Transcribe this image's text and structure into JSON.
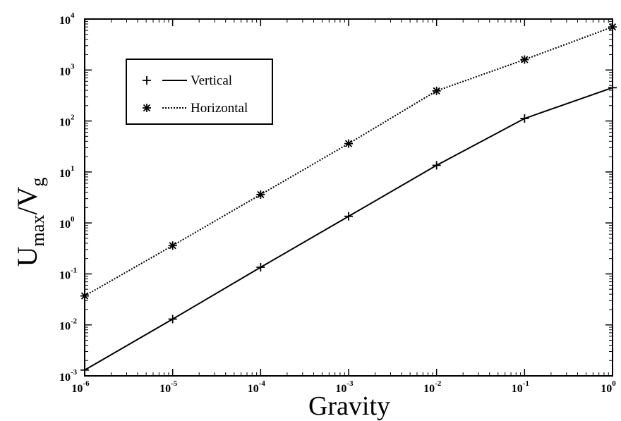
{
  "chart_data": {
    "type": "line",
    "title": "",
    "xlabel": "Gravity",
    "ylabel": {
      "main": "U",
      "sub1": "max",
      "mid": "/V",
      "sub2": "g"
    },
    "x_scale": "log",
    "y_scale": "log",
    "xlim": [
      1e-06,
      1
    ],
    "ylim": [
      0.001,
      10000.0
    ],
    "grid": false,
    "legend_position": "top-left",
    "x_ticks": [
      {
        "value": 1e-06,
        "base": "10",
        "exp": "-6"
      },
      {
        "value": 1e-05,
        "base": "10",
        "exp": "-5"
      },
      {
        "value": 0.0001,
        "base": "10",
        "exp": "-4"
      },
      {
        "value": 0.001,
        "base": "10",
        "exp": "-3"
      },
      {
        "value": 0.01,
        "base": "10",
        "exp": "-2"
      },
      {
        "value": 0.1,
        "base": "10",
        "exp": "-1"
      },
      {
        "value": 1,
        "base": "10",
        "exp": "0"
      }
    ],
    "y_ticks": [
      {
        "value": 0.001,
        "base": "10",
        "exp": "-3"
      },
      {
        "value": 0.01,
        "base": "10",
        "exp": "-2"
      },
      {
        "value": 0.1,
        "base": "10",
        "exp": "-1"
      },
      {
        "value": 1,
        "base": "10",
        "exp": "0"
      },
      {
        "value": 10,
        "base": "10",
        "exp": "1"
      },
      {
        "value": 100,
        "base": "10",
        "exp": "2"
      },
      {
        "value": 1000,
        "base": "10",
        "exp": "3"
      },
      {
        "value": 10000,
        "base": "10",
        "exp": "4"
      }
    ],
    "series": [
      {
        "name": "Vertical",
        "marker": "plus",
        "line": "solid",
        "color": "#000000",
        "x": [
          1e-06,
          1e-05,
          0.0001,
          0.001,
          0.01,
          0.1,
          1
        ],
        "y": [
          0.0013,
          0.013,
          0.135,
          1.35,
          13.5,
          112,
          450
        ]
      },
      {
        "name": "Horizontal",
        "marker": "asterisk",
        "line": "dotted",
        "color": "#000000",
        "x": [
          1e-06,
          1e-05,
          0.0001,
          0.001,
          0.01,
          0.1,
          1
        ],
        "y": [
          0.037,
          0.36,
          3.6,
          36,
          390,
          1600,
          7000
        ]
      }
    ]
  }
}
